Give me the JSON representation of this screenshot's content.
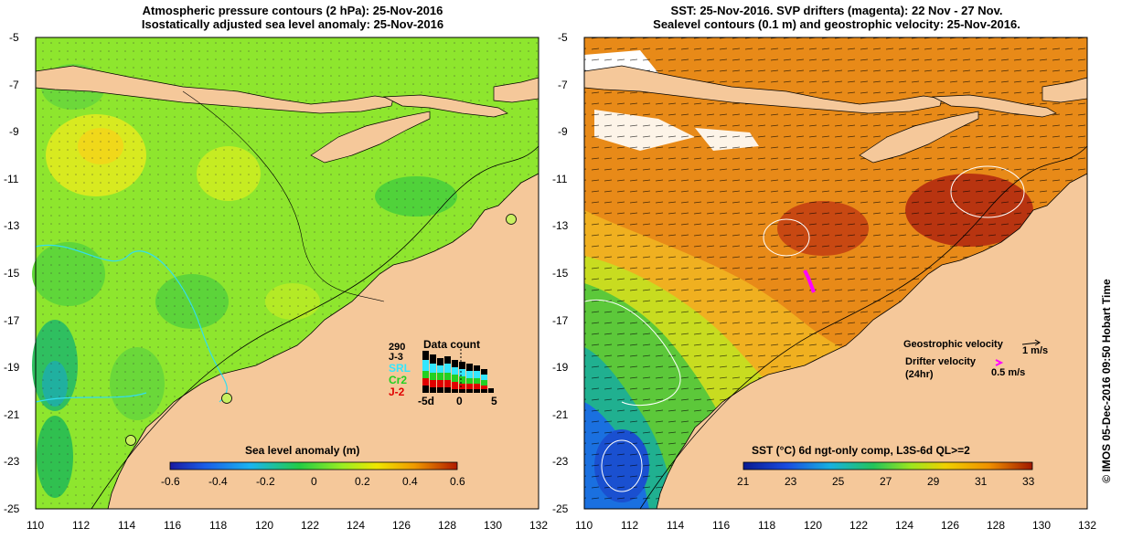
{
  "left_panel": {
    "title_line1": "Atmospheric pressure contours (2 hPa): 25-Nov-2016",
    "title_line2": "Isostatically adjusted sea level anomaly: 25-Nov-2016",
    "colorbar_title": "Sea level anomaly (m)",
    "colorbar_ticks": [
      "-0.6",
      "-0.4",
      "-0.2",
      "0",
      "0.2",
      "0.4",
      "0.6"
    ],
    "inset": {
      "title": "Data count",
      "ymax": "290",
      "series": [
        "J-3",
        "SRL",
        "Cr2",
        "J-2"
      ],
      "series_colors": [
        "#000000",
        "#33e6ff",
        "#22d022",
        "#e00000"
      ],
      "x_ticks": [
        "-5d",
        "0",
        "5"
      ]
    }
  },
  "right_panel": {
    "title_line1": "SST: 25-Nov-2016. SVP drifters (magenta): 22 Nov - 27 Nov.",
    "title_line2": "Sealevel contours (0.1 m) and geostrophic velocity: 25-Nov-2016.",
    "colorbar_title": "SST (°C) 6d ngt-only comp, L3S-6d QL>=2",
    "colorbar_ticks": [
      "21",
      "23",
      "25",
      "27",
      "29",
      "31",
      "33"
    ],
    "legend_geo": "Geostrophic velocity",
    "legend_geo_value": "1 m/s",
    "legend_drifter_line1": "Drifter velocity",
    "legend_drifter_line2": "(24hr)",
    "legend_drifter_value": "0.5 m/s",
    "drifter_color": "#ff00ff"
  },
  "axes": {
    "lon_ticks": [
      "110",
      "112",
      "114",
      "116",
      "118",
      "120",
      "122",
      "124",
      "126",
      "128",
      "130",
      "132"
    ],
    "lat_ticks": [
      "-5",
      "-7",
      "-9",
      "-11",
      "-13",
      "-15",
      "-17",
      "-19",
      "-21",
      "-23",
      "-25"
    ]
  },
  "credit": "©  IMOS 05-Dec-2016 09:50 Hobart Time",
  "colors": {
    "land": "#f5c89a",
    "sla_colorbar": [
      "#1a1aa0",
      "#1a5ce6",
      "#1ab4f0",
      "#22cc44",
      "#99ee22",
      "#f0e600",
      "#f09a00",
      "#e05000",
      "#b01a00"
    ],
    "sst_colorbar": [
      "#0a1a90",
      "#1a4ce0",
      "#18b0e0",
      "#22c45a",
      "#9ce61e",
      "#f0d000",
      "#f09000",
      "#d84a00",
      "#a01800"
    ]
  }
}
